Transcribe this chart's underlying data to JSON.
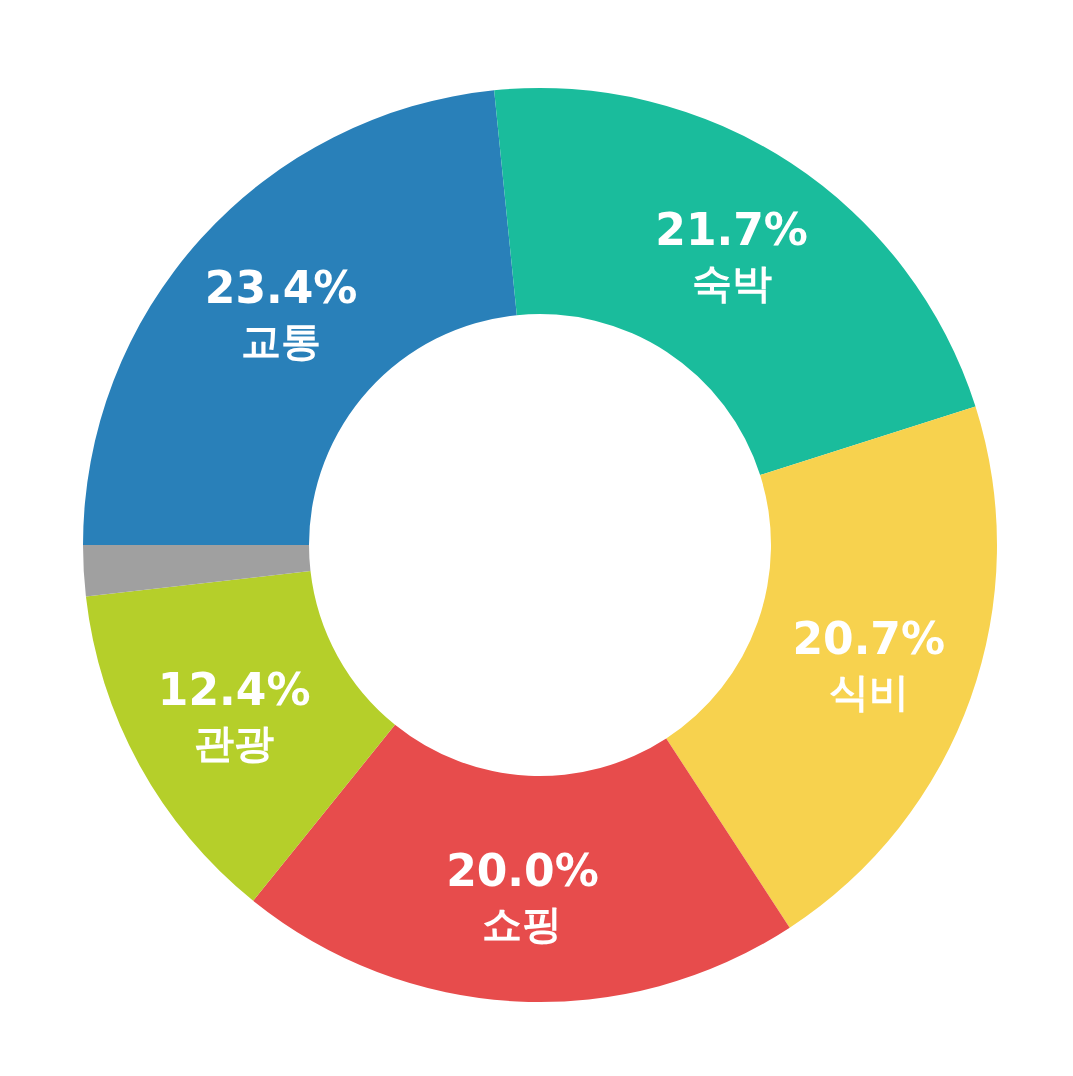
{
  "chart_data": {
    "type": "donut",
    "categories": [
      "교통",
      "숙박",
      "식비",
      "쇼핑",
      "관광",
      null
    ],
    "values": [
      23.4,
      21.7,
      20.7,
      20.0,
      12.4,
      1.8
    ],
    "colors": [
      "#2980b9",
      "#1abc9c",
      "#f7d24e",
      "#e74c4c",
      "#b5cf2a",
      "#a0a0a0"
    ],
    "value_labels": [
      "23.4%",
      "21.7%",
      "20.7%",
      "20.0%",
      "12.4%",
      null
    ],
    "legend": false
  }
}
